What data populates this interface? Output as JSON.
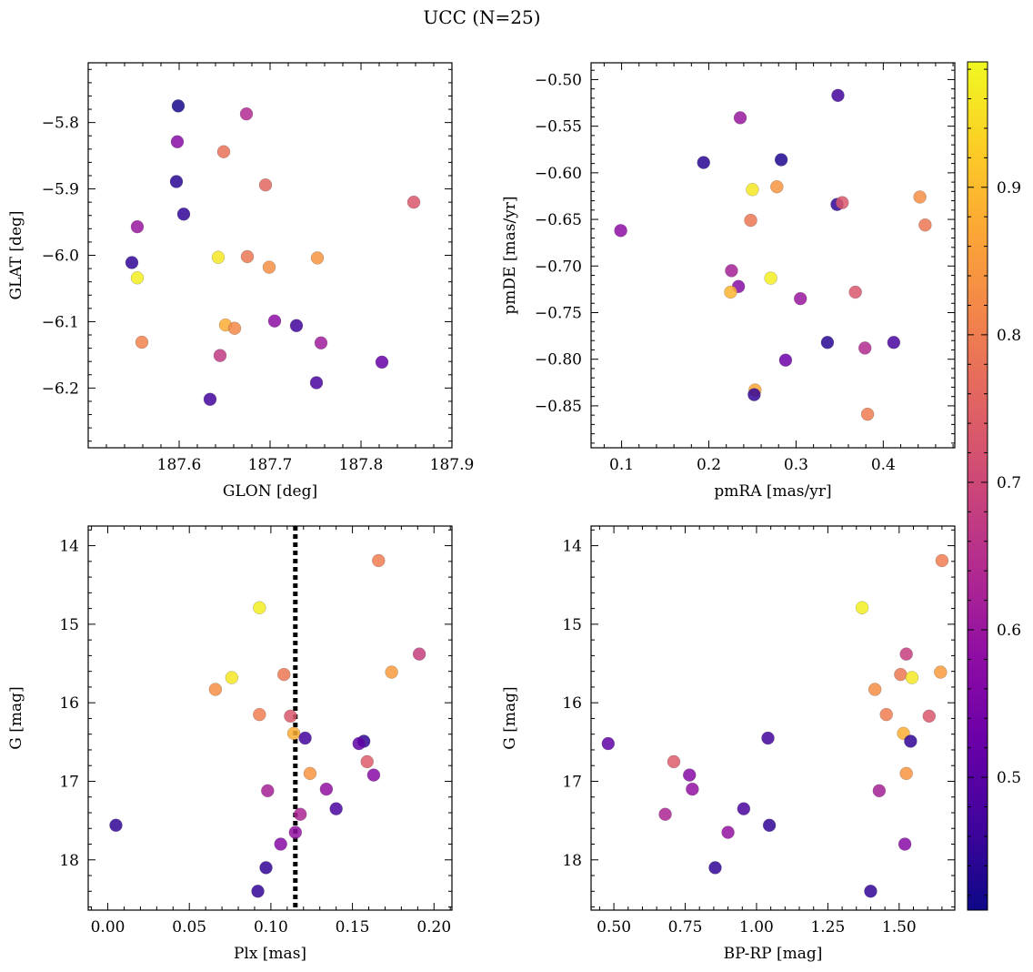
{
  "figure": {
    "title": "UCC (N=25)"
  },
  "colorbar": {
    "colormap": "plasma",
    "range": [
      0.41,
      0.985
    ],
    "ticks": [
      0.5,
      0.6,
      0.7,
      0.8,
      0.9
    ],
    "tick_labels": [
      "0.5",
      "0.6",
      "0.7",
      "0.8",
      "0.9"
    ]
  },
  "chart_data": [
    {
      "type": "scatter",
      "title": "",
      "xlabel": "GLON [deg]",
      "ylabel": "GLAT [deg]",
      "xlim": [
        187.5,
        187.9
      ],
      "ylim": [
        -6.29,
        -5.71
      ],
      "xticks": [
        187.6,
        187.7,
        187.8,
        187.9
      ],
      "xtick_labels": [
        "187.6",
        "187.7",
        "187.8",
        "187.9"
      ],
      "yticks": [
        -5.8,
        -5.9,
        -6.0,
        -6.1,
        -6.2
      ],
      "ytick_labels": [
        "−5.8",
        "−5.9",
        "−6.0",
        "−6.1",
        "−6.2"
      ],
      "points": [
        {
          "x": 187.599,
          "y": -5.775,
          "c": 0.42
        },
        {
          "x": 187.674,
          "y": -5.787,
          "c": 0.64
        },
        {
          "x": 187.598,
          "y": -5.829,
          "c": 0.57
        },
        {
          "x": 187.649,
          "y": -5.844,
          "c": 0.78
        },
        {
          "x": 187.597,
          "y": -5.889,
          "c": 0.44
        },
        {
          "x": 187.695,
          "y": -5.894,
          "c": 0.76
        },
        {
          "x": 187.858,
          "y": -5.92,
          "c": 0.73
        },
        {
          "x": 187.605,
          "y": -5.938,
          "c": 0.45
        },
        {
          "x": 187.554,
          "y": -5.957,
          "c": 0.6
        },
        {
          "x": 187.643,
          "y": -6.003,
          "c": 0.96
        },
        {
          "x": 187.675,
          "y": -6.002,
          "c": 0.79
        },
        {
          "x": 187.752,
          "y": -6.004,
          "c": 0.84
        },
        {
          "x": 187.548,
          "y": -6.011,
          "c": 0.45
        },
        {
          "x": 187.699,
          "y": -6.018,
          "c": 0.83
        },
        {
          "x": 187.554,
          "y": -6.034,
          "c": 0.97
        },
        {
          "x": 187.705,
          "y": -6.099,
          "c": 0.58
        },
        {
          "x": 187.651,
          "y": -6.105,
          "c": 0.88
        },
        {
          "x": 187.729,
          "y": -6.106,
          "c": 0.47
        },
        {
          "x": 187.661,
          "y": -6.11,
          "c": 0.82
        },
        {
          "x": 187.559,
          "y": -6.131,
          "c": 0.81
        },
        {
          "x": 187.756,
          "y": -6.132,
          "c": 0.61
        },
        {
          "x": 187.645,
          "y": -6.151,
          "c": 0.67
        },
        {
          "x": 187.823,
          "y": -6.161,
          "c": 0.52
        },
        {
          "x": 187.751,
          "y": -6.192,
          "c": 0.48
        },
        {
          "x": 187.634,
          "y": -6.217,
          "c": 0.47
        }
      ]
    },
    {
      "type": "scatter",
      "title": "",
      "xlabel": "pmRA [mas/yr]",
      "ylabel": "pmDE [mas/yr]",
      "xlim": [
        0.065,
        0.482
      ],
      "ylim": [
        -0.895,
        -0.482
      ],
      "xticks": [
        0.1,
        0.2,
        0.3,
        0.4
      ],
      "xtick_labels": [
        "0.1",
        "0.2",
        "0.3",
        "0.4"
      ],
      "yticks": [
        -0.5,
        -0.55,
        -0.6,
        -0.65,
        -0.7,
        -0.75,
        -0.8,
        -0.85
      ],
      "ytick_labels": [
        "−0.50",
        "−0.55",
        "−0.60",
        "−0.65",
        "−0.70",
        "−0.75",
        "−0.80",
        "−0.85"
      ],
      "points": [
        {
          "x": 0.348,
          "y": -0.517,
          "c": 0.47
        },
        {
          "x": 0.236,
          "y": -0.541,
          "c": 0.6
        },
        {
          "x": 0.194,
          "y": -0.589,
          "c": 0.44
        },
        {
          "x": 0.283,
          "y": -0.586,
          "c": 0.43
        },
        {
          "x": 0.25,
          "y": -0.618,
          "c": 0.96
        },
        {
          "x": 0.278,
          "y": -0.615,
          "c": 0.84
        },
        {
          "x": 0.442,
          "y": -0.626,
          "c": 0.83
        },
        {
          "x": 0.347,
          "y": -0.634,
          "c": 0.45
        },
        {
          "x": 0.353,
          "y": -0.632,
          "c": 0.73
        },
        {
          "x": 0.248,
          "y": -0.651,
          "c": 0.79
        },
        {
          "x": 0.448,
          "y": -0.656,
          "c": 0.79
        },
        {
          "x": 0.099,
          "y": -0.662,
          "c": 0.58
        },
        {
          "x": 0.226,
          "y": -0.705,
          "c": 0.62
        },
        {
          "x": 0.271,
          "y": -0.713,
          "c": 0.97
        },
        {
          "x": 0.234,
          "y": -0.722,
          "c": 0.57
        },
        {
          "x": 0.225,
          "y": -0.728,
          "c": 0.89
        },
        {
          "x": 0.368,
          "y": -0.728,
          "c": 0.73
        },
        {
          "x": 0.305,
          "y": -0.735,
          "c": 0.6
        },
        {
          "x": 0.336,
          "y": -0.782,
          "c": 0.44
        },
        {
          "x": 0.412,
          "y": -0.782,
          "c": 0.48
        },
        {
          "x": 0.379,
          "y": -0.788,
          "c": 0.64
        },
        {
          "x": 0.288,
          "y": -0.801,
          "c": 0.53
        },
        {
          "x": 0.253,
          "y": -0.833,
          "c": 0.87
        },
        {
          "x": 0.252,
          "y": -0.838,
          "c": 0.45
        },
        {
          "x": 0.382,
          "y": -0.859,
          "c": 0.8
        }
      ]
    },
    {
      "type": "scatter",
      "title": "",
      "xlabel": "Plx [mas]",
      "ylabel": "G [mag]",
      "xlim": [
        -0.012,
        0.211
      ],
      "ylim": [
        18.64,
        13.75
      ],
      "y_inverted": true,
      "xticks": [
        0.0,
        0.05,
        0.1,
        0.15,
        0.2
      ],
      "xtick_labels": [
        "0.00",
        "0.05",
        "0.10",
        "0.15",
        "0.20"
      ],
      "yticks": [
        14,
        15,
        16,
        17,
        18
      ],
      "ytick_labels": [
        "14",
        "15",
        "16",
        "17",
        "18"
      ],
      "vline": {
        "x": 0.115,
        "style": "dotted"
      },
      "points": [
        {
          "x": 0.166,
          "y": 14.19,
          "c": 0.8
        },
        {
          "x": 0.093,
          "y": 14.79,
          "c": 0.97
        },
        {
          "x": 0.191,
          "y": 15.38,
          "c": 0.68
        },
        {
          "x": 0.174,
          "y": 15.61,
          "c": 0.85
        },
        {
          "x": 0.108,
          "y": 15.64,
          "c": 0.79
        },
        {
          "x": 0.076,
          "y": 15.68,
          "c": 0.96
        },
        {
          "x": 0.066,
          "y": 15.83,
          "c": 0.83
        },
        {
          "x": 0.093,
          "y": 16.15,
          "c": 0.8
        },
        {
          "x": 0.112,
          "y": 16.17,
          "c": 0.73
        },
        {
          "x": 0.114,
          "y": 16.39,
          "c": 0.88
        },
        {
          "x": 0.121,
          "y": 16.45,
          "c": 0.47
        },
        {
          "x": 0.157,
          "y": 16.49,
          "c": 0.45
        },
        {
          "x": 0.154,
          "y": 16.52,
          "c": 0.51
        },
        {
          "x": 0.159,
          "y": 16.75,
          "c": 0.74
        },
        {
          "x": 0.124,
          "y": 16.9,
          "c": 0.84
        },
        {
          "x": 0.163,
          "y": 16.92,
          "c": 0.57
        },
        {
          "x": 0.134,
          "y": 17.1,
          "c": 0.59
        },
        {
          "x": 0.098,
          "y": 17.12,
          "c": 0.62
        },
        {
          "x": 0.14,
          "y": 17.35,
          "c": 0.48
        },
        {
          "x": 0.118,
          "y": 17.42,
          "c": 0.63
        },
        {
          "x": 0.005,
          "y": 17.56,
          "c": 0.45
        },
        {
          "x": 0.115,
          "y": 17.65,
          "c": 0.59
        },
        {
          "x": 0.106,
          "y": 17.8,
          "c": 0.57
        },
        {
          "x": 0.097,
          "y": 18.1,
          "c": 0.45
        },
        {
          "x": 0.092,
          "y": 18.4,
          "c": 0.45
        }
      ]
    },
    {
      "type": "scatter",
      "title": "",
      "xlabel": "BP-RP [mag]",
      "ylabel": "G [mag]",
      "xlim": [
        0.42,
        1.695
      ],
      "ylim": [
        18.64,
        13.75
      ],
      "y_inverted": true,
      "xticks": [
        0.5,
        0.75,
        1.0,
        1.25,
        1.5
      ],
      "xtick_labels": [
        "0.50",
        "0.75",
        "1.00",
        "1.25",
        "1.50"
      ],
      "yticks": [
        14,
        15,
        16,
        17,
        18
      ],
      "ytick_labels": [
        "14",
        "15",
        "16",
        "17",
        "18"
      ],
      "points": [
        {
          "x": 1.65,
          "y": 14.19,
          "c": 0.8
        },
        {
          "x": 1.37,
          "y": 14.79,
          "c": 0.97
        },
        {
          "x": 1.525,
          "y": 15.38,
          "c": 0.68
        },
        {
          "x": 1.645,
          "y": 15.61,
          "c": 0.85
        },
        {
          "x": 1.505,
          "y": 15.64,
          "c": 0.79
        },
        {
          "x": 1.545,
          "y": 15.68,
          "c": 0.96
        },
        {
          "x": 1.415,
          "y": 15.83,
          "c": 0.83
        },
        {
          "x": 1.455,
          "y": 16.15,
          "c": 0.8
        },
        {
          "x": 1.605,
          "y": 16.17,
          "c": 0.73
        },
        {
          "x": 1.515,
          "y": 16.39,
          "c": 0.88
        },
        {
          "x": 1.04,
          "y": 16.45,
          "c": 0.47
        },
        {
          "x": 1.54,
          "y": 16.49,
          "c": 0.45
        },
        {
          "x": 0.48,
          "y": 16.52,
          "c": 0.51
        },
        {
          "x": 0.71,
          "y": 16.75,
          "c": 0.74
        },
        {
          "x": 1.525,
          "y": 16.9,
          "c": 0.84
        },
        {
          "x": 0.765,
          "y": 16.92,
          "c": 0.57
        },
        {
          "x": 0.775,
          "y": 17.1,
          "c": 0.59
        },
        {
          "x": 1.43,
          "y": 17.12,
          "c": 0.62
        },
        {
          "x": 0.955,
          "y": 17.35,
          "c": 0.48
        },
        {
          "x": 0.68,
          "y": 17.42,
          "c": 0.63
        },
        {
          "x": 1.045,
          "y": 17.56,
          "c": 0.45
        },
        {
          "x": 0.9,
          "y": 17.65,
          "c": 0.59
        },
        {
          "x": 1.52,
          "y": 17.8,
          "c": 0.57
        },
        {
          "x": 0.855,
          "y": 18.1,
          "c": 0.45
        },
        {
          "x": 1.4,
          "y": 18.4,
          "c": 0.45
        }
      ]
    }
  ]
}
